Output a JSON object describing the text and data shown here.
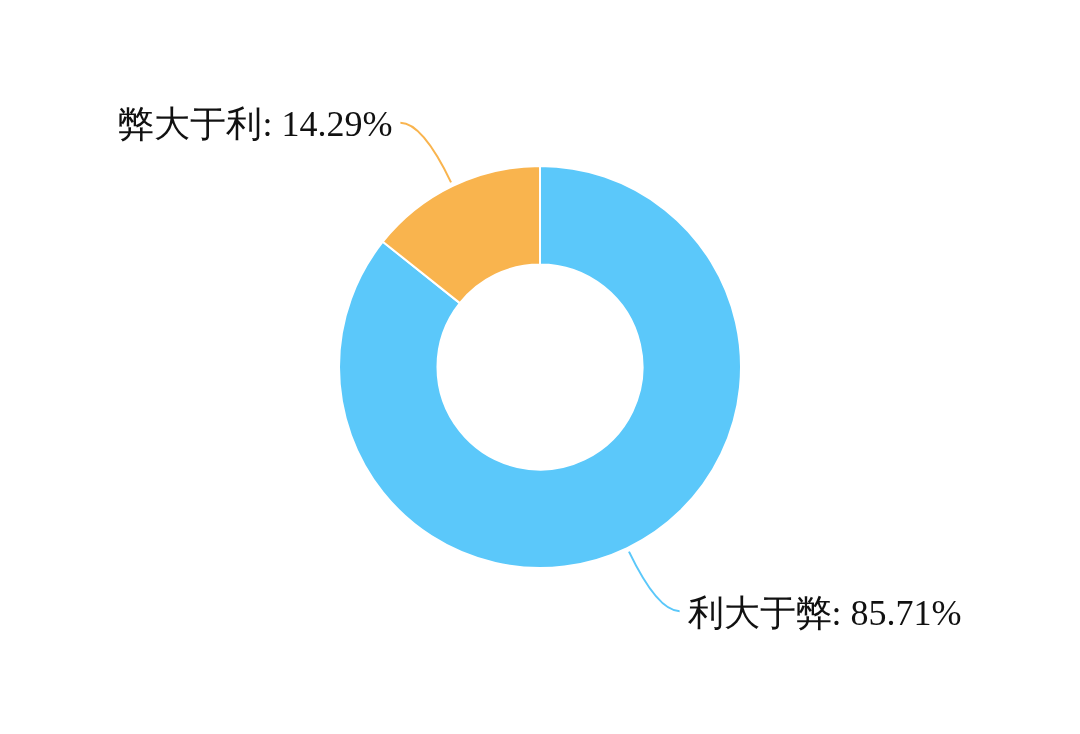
{
  "chart_data": {
    "type": "donut",
    "categories": [
      "利大于弊",
      "弊大于利"
    ],
    "values": [
      85.71,
      14.29
    ],
    "value_labels": [
      "85.71%",
      "14.29%"
    ],
    "colors": [
      "#5bc8fa",
      "#f9b44e"
    ],
    "legend": false
  }
}
